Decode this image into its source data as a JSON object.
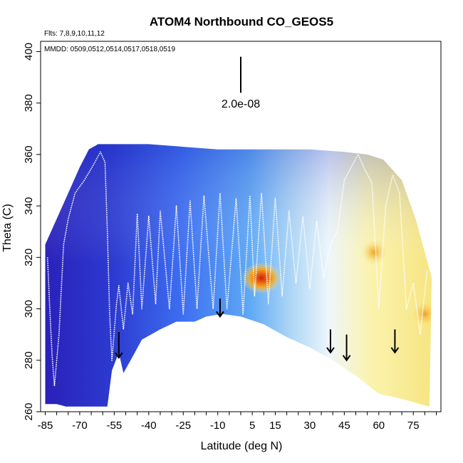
{
  "chart_data": {
    "type": "heatmap",
    "title": "ATOM4 Northbound CO_GEOS5",
    "subtitle_flights": "Flts: 7,8,9,10,11,12",
    "subtitle_dates": "MMDD: 0509,0512,0514,0517,0518,0519",
    "xlabel": "Latitude (deg N)",
    "ylabel": "Theta (C)",
    "xlim": [
      -87,
      87
    ],
    "ylim": [
      260,
      404
    ],
    "x_ticks": [
      -85,
      -70,
      -55,
      -40,
      -25,
      -10,
      5,
      15,
      30,
      45,
      60,
      75
    ],
    "x_tick_labels": [
      "-85",
      "-70",
      "-55",
      "-40",
      "-25",
      "-10",
      "5",
      "15",
      "30",
      "45",
      "60",
      "75"
    ],
    "y_ticks": [
      260,
      280,
      300,
      320,
      340,
      360,
      380,
      400
    ],
    "y_tick_labels": [
      "260",
      "280",
      "300",
      "320",
      "340",
      "360",
      "380",
      "400"
    ],
    "scale_bar_label": "2.0e-08",
    "scale_bar": {
      "x": 0,
      "y_bottom": 384,
      "y_top": 398
    },
    "surface_profile": [
      {
        "lat": -85,
        "theta": 263
      },
      {
        "lat": -80,
        "theta": 263
      },
      {
        "lat": -76,
        "theta": 262
      },
      {
        "lat": -58,
        "theta": 262
      },
      {
        "lat": -56,
        "theta": 276
      },
      {
        "lat": -53,
        "theta": 283
      },
      {
        "lat": -51,
        "theta": 275
      },
      {
        "lat": -46,
        "theta": 283
      },
      {
        "lat": -43,
        "theta": 288
      },
      {
        "lat": -35,
        "theta": 292
      },
      {
        "lat": -28,
        "theta": 295
      },
      {
        "lat": -20,
        "theta": 295
      },
      {
        "lat": -15,
        "theta": 297
      },
      {
        "lat": -8,
        "theta": 298
      },
      {
        "lat": 0,
        "theta": 297
      },
      {
        "lat": 10,
        "theta": 294
      },
      {
        "lat": 20,
        "theta": 289
      },
      {
        "lat": 30,
        "theta": 285
      },
      {
        "lat": 40,
        "theta": 280
      },
      {
        "lat": 50,
        "theta": 274
      },
      {
        "lat": 60,
        "theta": 267
      },
      {
        "lat": 70,
        "theta": 265
      },
      {
        "lat": 78,
        "theta": 263
      },
      {
        "lat": 82,
        "theta": 262
      }
    ],
    "top_profile": [
      {
        "lat": -85,
        "theta": 325
      },
      {
        "lat": -80,
        "theta": 335
      },
      {
        "lat": -75,
        "theta": 345
      },
      {
        "lat": -70,
        "theta": 355
      },
      {
        "lat": -66,
        "theta": 362
      },
      {
        "lat": -62,
        "theta": 364
      },
      {
        "lat": -55,
        "theta": 364
      },
      {
        "lat": -40,
        "theta": 364
      },
      {
        "lat": -25,
        "theta": 363
      },
      {
        "lat": -10,
        "theta": 362
      },
      {
        "lat": 10,
        "theta": 362
      },
      {
        "lat": 30,
        "theta": 362
      },
      {
        "lat": 45,
        "theta": 361
      },
      {
        "lat": 55,
        "theta": 360
      },
      {
        "lat": 62,
        "theta": 358
      },
      {
        "lat": 70,
        "theta": 350
      },
      {
        "lat": 76,
        "theta": 335
      },
      {
        "lat": 80,
        "theta": 322
      },
      {
        "lat": 83,
        "theta": 312
      }
    ],
    "flight_track": [
      {
        "lat": -84,
        "theta": 320
      },
      {
        "lat": -83,
        "theta": 300
      },
      {
        "lat": -82,
        "theta": 282
      },
      {
        "lat": -81,
        "theta": 270
      },
      {
        "lat": -79,
        "theta": 290
      },
      {
        "lat": -77,
        "theta": 325
      },
      {
        "lat": -75,
        "theta": 335
      },
      {
        "lat": -72,
        "theta": 345
      },
      {
        "lat": -68,
        "theta": 350
      },
      {
        "lat": -64,
        "theta": 356
      },
      {
        "lat": -61,
        "theta": 361
      },
      {
        "lat": -59,
        "theta": 357
      },
      {
        "lat": -58,
        "theta": 330
      },
      {
        "lat": -57,
        "theta": 298
      },
      {
        "lat": -56,
        "theta": 280
      },
      {
        "lat": -54,
        "theta": 302
      },
      {
        "lat": -53,
        "theta": 309
      },
      {
        "lat": -51,
        "theta": 292
      },
      {
        "lat": -49,
        "theta": 310
      },
      {
        "lat": -47,
        "theta": 298
      },
      {
        "lat": -45,
        "theta": 337
      },
      {
        "lat": -43,
        "theta": 300
      },
      {
        "lat": -40,
        "theta": 336
      },
      {
        "lat": -37,
        "theta": 302
      },
      {
        "lat": -35,
        "theta": 338
      },
      {
        "lat": -31,
        "theta": 300
      },
      {
        "lat": -28,
        "theta": 340
      },
      {
        "lat": -25,
        "theta": 298
      },
      {
        "lat": -22,
        "theta": 342
      },
      {
        "lat": -19,
        "theta": 300
      },
      {
        "lat": -16,
        "theta": 344
      },
      {
        "lat": -12,
        "theta": 300
      },
      {
        "lat": -9,
        "theta": 345
      },
      {
        "lat": -6,
        "theta": 300
      },
      {
        "lat": -2,
        "theta": 343
      },
      {
        "lat": 1,
        "theta": 298
      },
      {
        "lat": 4,
        "theta": 344
      },
      {
        "lat": 6,
        "theta": 305
      },
      {
        "lat": 9,
        "theta": 345
      },
      {
        "lat": 12,
        "theta": 302
      },
      {
        "lat": 15,
        "theta": 343
      },
      {
        "lat": 18,
        "theta": 305
      },
      {
        "lat": 21,
        "theta": 338
      },
      {
        "lat": 24,
        "theta": 310
      },
      {
        "lat": 27,
        "theta": 336
      },
      {
        "lat": 30,
        "theta": 308
      },
      {
        "lat": 33,
        "theta": 334
      },
      {
        "lat": 36,
        "theta": 312
      },
      {
        "lat": 39,
        "theta": 325
      },
      {
        "lat": 42,
        "theta": 330
      },
      {
        "lat": 45,
        "theta": 350
      },
      {
        "lat": 48,
        "theta": 355
      },
      {
        "lat": 51,
        "theta": 360
      },
      {
        "lat": 54,
        "theta": 354
      },
      {
        "lat": 57,
        "theta": 349
      },
      {
        "lat": 60,
        "theta": 300
      },
      {
        "lat": 63,
        "theta": 340
      },
      {
        "lat": 66,
        "theta": 352
      },
      {
        "lat": 69,
        "theta": 345
      },
      {
        "lat": 72,
        "theta": 300
      },
      {
        "lat": 75,
        "theta": 310
      },
      {
        "lat": 78,
        "theta": 290
      },
      {
        "lat": 81,
        "theta": 315
      }
    ],
    "arrows": [
      {
        "lat": -53,
        "theta_top": 291,
        "theta_bottom": 281
      },
      {
        "lat": -9,
        "theta_top": 304,
        "theta_bottom": 297
      },
      {
        "lat": 39,
        "theta_top": 292,
        "theta_bottom": 283
      },
      {
        "lat": 46,
        "theta_top": 290,
        "theta_bottom": 280
      },
      {
        "lat": 67,
        "theta_top": 292,
        "theta_bottom": 283
      }
    ],
    "hotspots": [
      {
        "lat": 9,
        "theta": 312,
        "level": "high"
      },
      {
        "lat": 58,
        "theta": 322,
        "level": "mid"
      },
      {
        "lat": 80,
        "theta": 298,
        "level": "mid"
      }
    ],
    "colors": {
      "low": "#2a1fb8",
      "mid_low": "#3d6df0",
      "mid": "#a9d4f5",
      "neutral": "#ffffff",
      "mid_high": "#fbf3b0",
      "high": "#f3a21c",
      "peak": "#d61e0c",
      "track": "#ffffff",
      "arrow": "#000000"
    }
  }
}
